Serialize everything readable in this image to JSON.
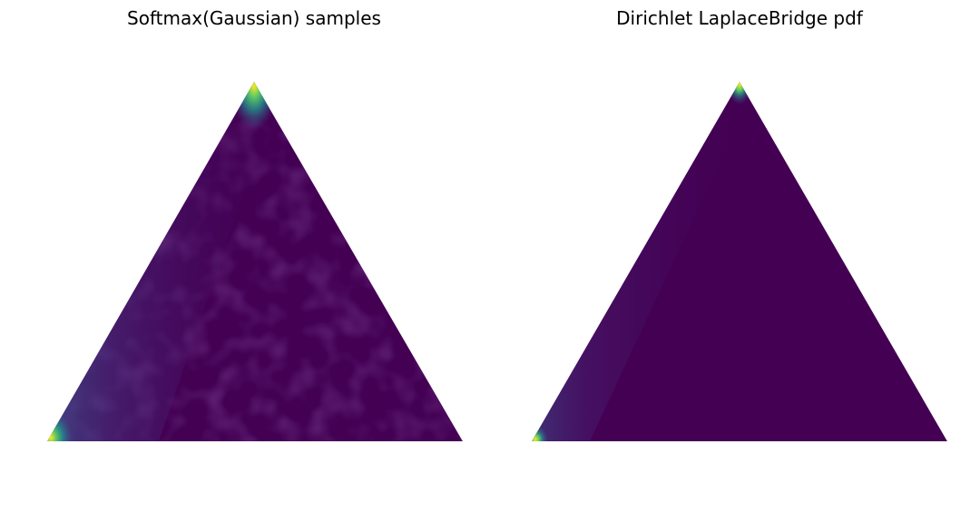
{
  "figure": {
    "titles": [
      "Softmax(Gaussian) samples",
      "Dirichlet LaplaceBridge pdf"
    ]
  },
  "chart_data": [
    {
      "type": "heatmap",
      "title": "Softmax(Gaussian) samples",
      "axes": "off",
      "grid": false,
      "legend": "none",
      "domain": "probability simplex (3 classes), ternary triangle",
      "colormap": "viridis",
      "colors": {
        "low": "#440154",
        "mid_low": "#3b528b",
        "mid": "#21918c",
        "mid_high": "#5ec962",
        "high": "#fde725"
      },
      "density_pattern": {
        "high_regions": [
          "top vertex",
          "bottom-left vertex"
        ],
        "gradient_edge": "left edge",
        "interior": "low, mottled (sample noise)"
      }
    },
    {
      "type": "heatmap",
      "title": "Dirichlet LaplaceBridge pdf",
      "axes": "off",
      "grid": false,
      "legend": "none",
      "domain": "probability simplex (3 classes), ternary triangle",
      "colormap": "viridis",
      "colors": {
        "low": "#440154",
        "mid_low": "#3b528b",
        "mid": "#21918c",
        "mid_high": "#5ec962",
        "high": "#fde725"
      },
      "density_pattern": {
        "high_regions": [
          "top vertex",
          "bottom-left vertex"
        ],
        "gradient_edge": "left edge (narrow band)",
        "interior": "low, uniform"
      }
    }
  ]
}
